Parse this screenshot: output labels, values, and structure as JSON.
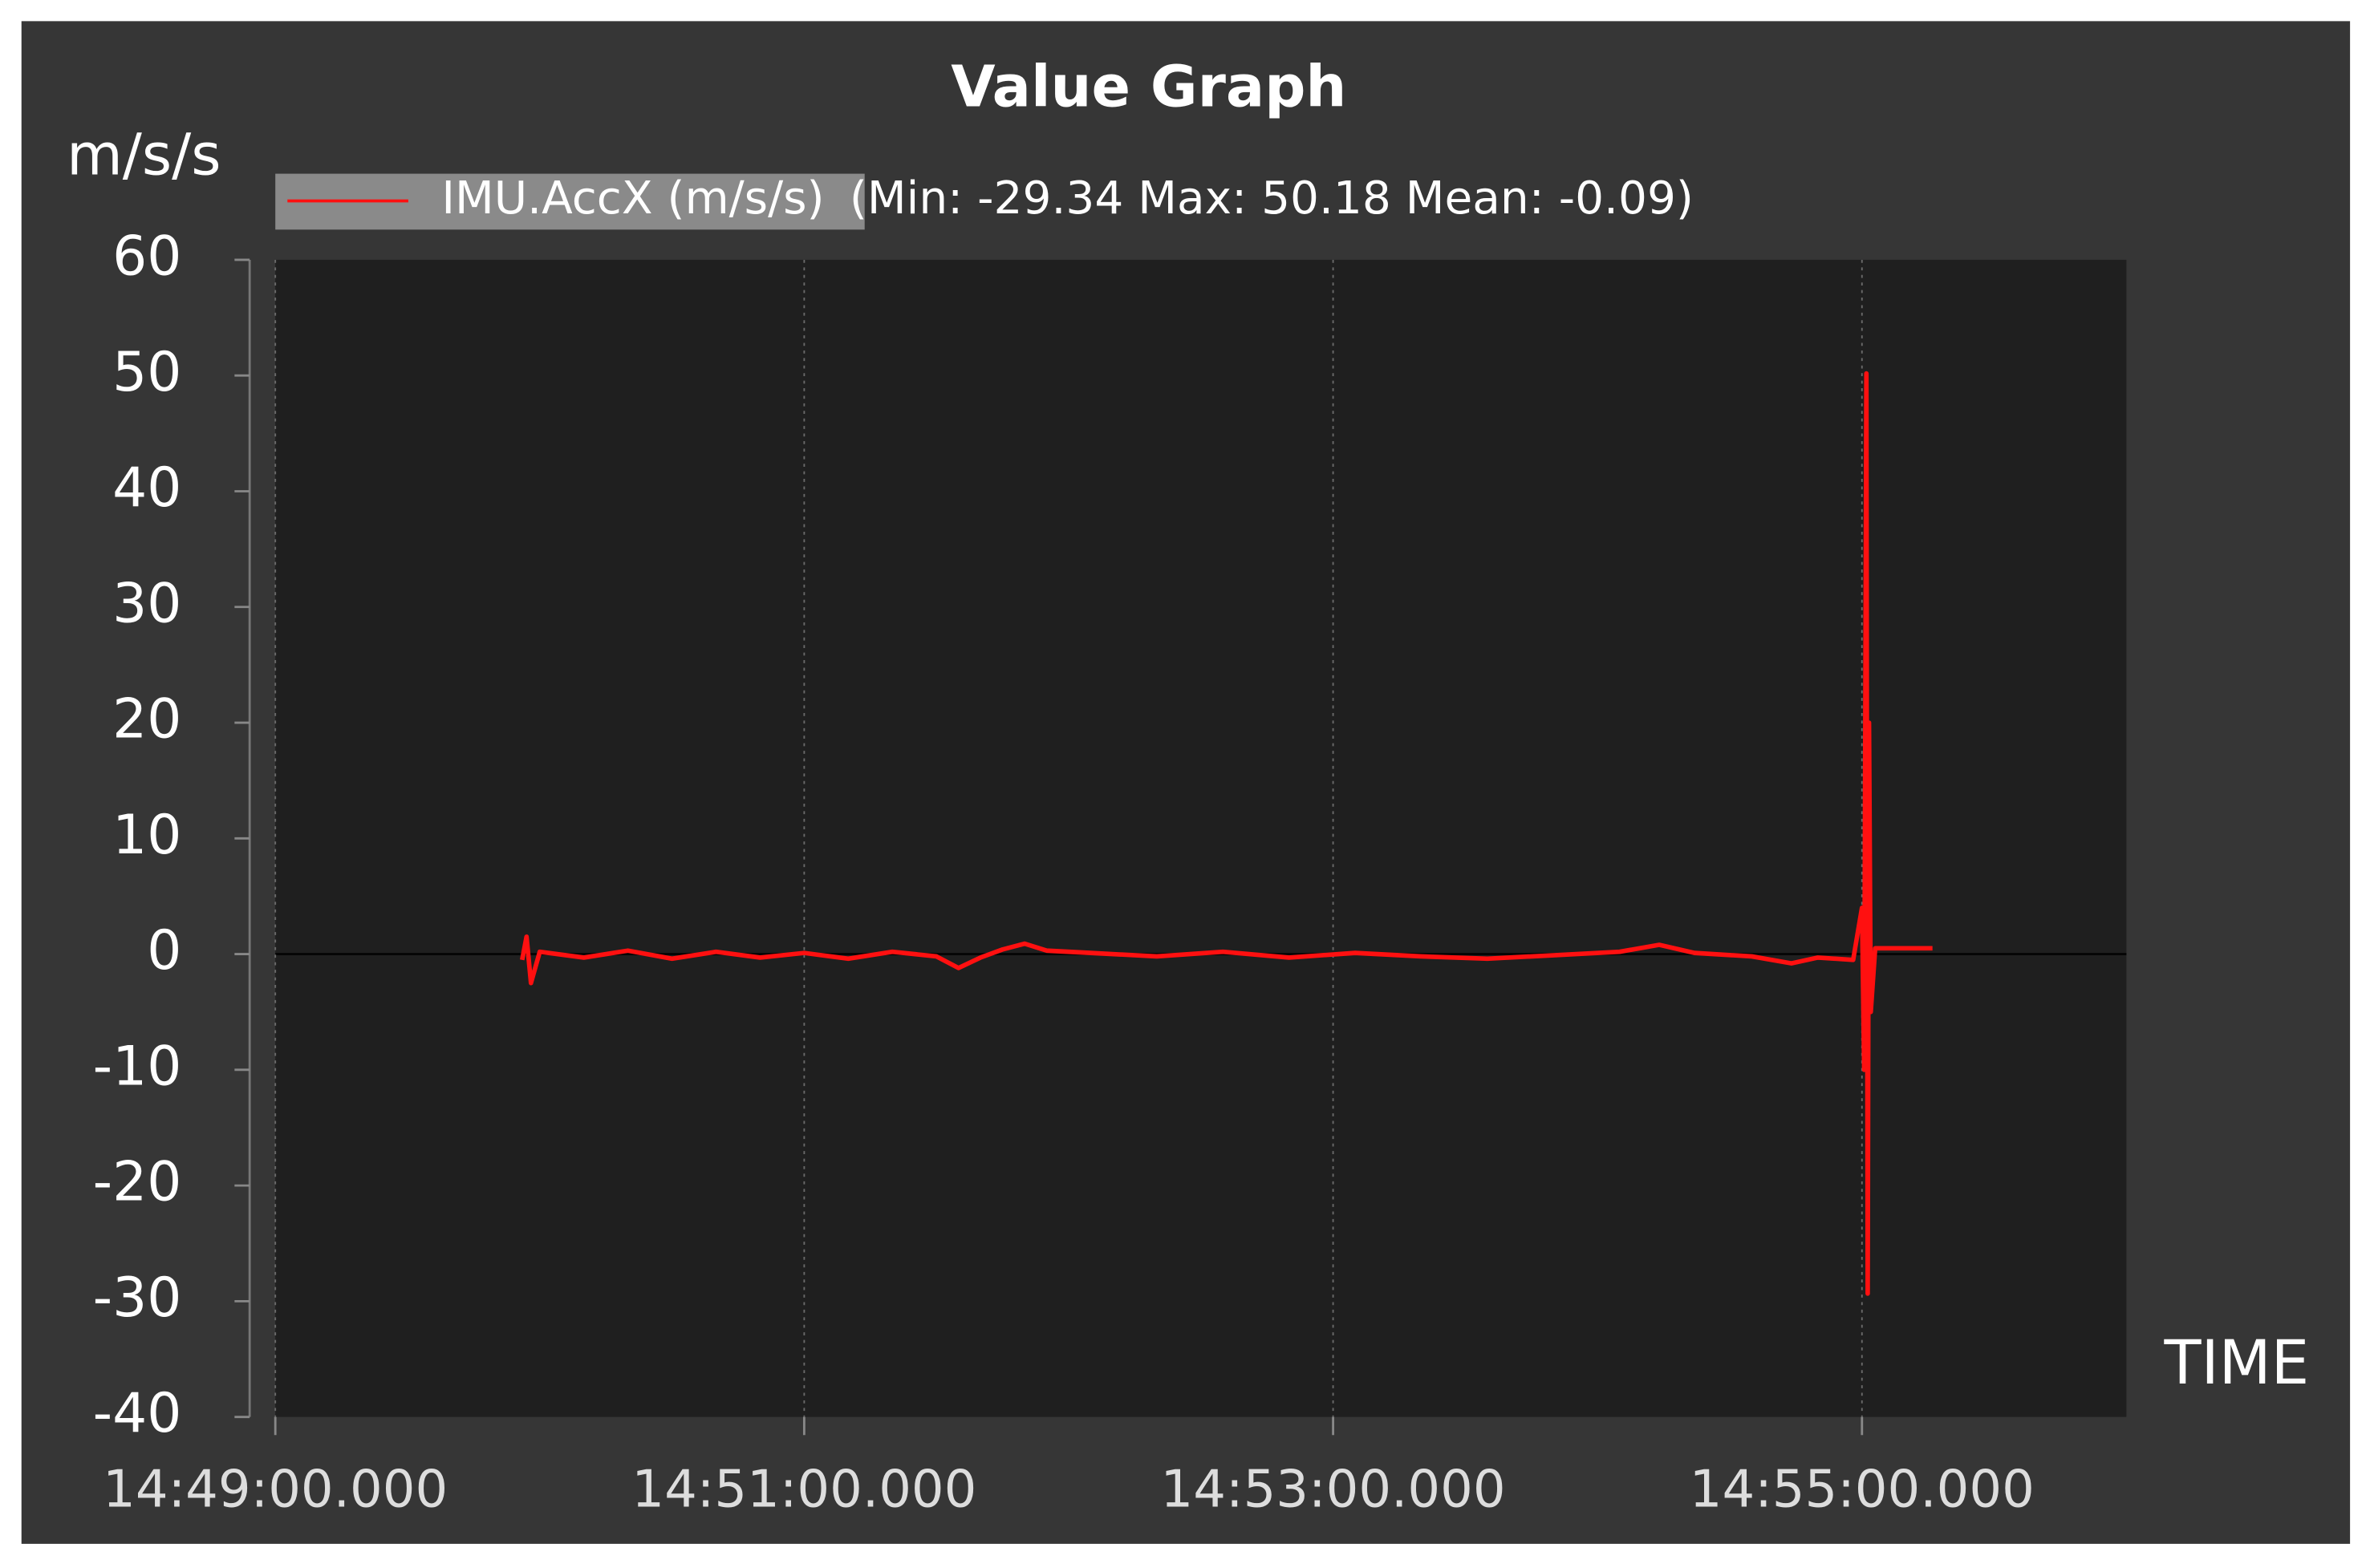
{
  "chart_data": {
    "type": "line",
    "title": "Value Graph",
    "y_label": "m/s/s",
    "x_label": "TIME",
    "legend_stats": "(Min: -29.34 Max: 50.18 Mean: -0.09)",
    "xlim": [
      "14:49:00.000",
      "14:56:00.000"
    ],
    "xticks": [
      "14:49:00.000",
      "14:51:00.000",
      "14:53:00.000",
      "14:55:00.000"
    ],
    "ylim": [
      -40,
      60
    ],
    "yticks": [
      60,
      50,
      40,
      30,
      20,
      10,
      0,
      -10,
      -20,
      -30,
      -40
    ],
    "grid": true,
    "x": [
      "14:49:56.000",
      "14:49:57.000",
      "14:49:58.000",
      "14:50:00.000",
      "14:50:10.000",
      "14:50:20.000",
      "14:50:30.000",
      "14:50:40.000",
      "14:50:50.000",
      "14:51:00.000",
      "14:51:10.000",
      "14:51:20.000",
      "14:51:30.000",
      "14:51:35.000",
      "14:51:40.000",
      "14:51:45.000",
      "14:51:50.000",
      "14:51:55.000",
      "14:52:05.000",
      "14:52:20.000",
      "14:52:35.000",
      "14:52:50.000",
      "14:53:05.000",
      "14:53:20.000",
      "14:53:35.000",
      "14:53:50.000",
      "14:54:05.000",
      "14:54:14.000",
      "14:54:22.000",
      "14:54:35.000",
      "14:54:44.000",
      "14:54:50.000",
      "14:54:58.000",
      "14:55:00.000",
      "14:55:00.500",
      "14:55:01.000",
      "14:55:01.300",
      "14:55:01.600",
      "14:55:02.000",
      "14:55:03.000",
      "14:55:05.000",
      "14:55:16.000"
    ],
    "series": [
      {
        "name": "IMU.AccX (m/s/s)",
        "color": "#ff1010",
        "values": [
          -0.5,
          1.5,
          -2.5,
          0.2,
          -0.3,
          0.3,
          -0.4,
          0.2,
          -0.3,
          0.1,
          -0.4,
          0.2,
          -0.2,
          -1.2,
          -0.3,
          0.4,
          0.9,
          0.3,
          0.1,
          -0.2,
          0.2,
          -0.3,
          0.1,
          -0.2,
          -0.4,
          -0.1,
          0.2,
          0.8,
          0.1,
          -0.2,
          -0.8,
          -0.3,
          -0.5,
          4,
          -10,
          50.18,
          -29.34,
          20,
          -5,
          0.5,
          0.5,
          0.5
        ]
      }
    ]
  }
}
